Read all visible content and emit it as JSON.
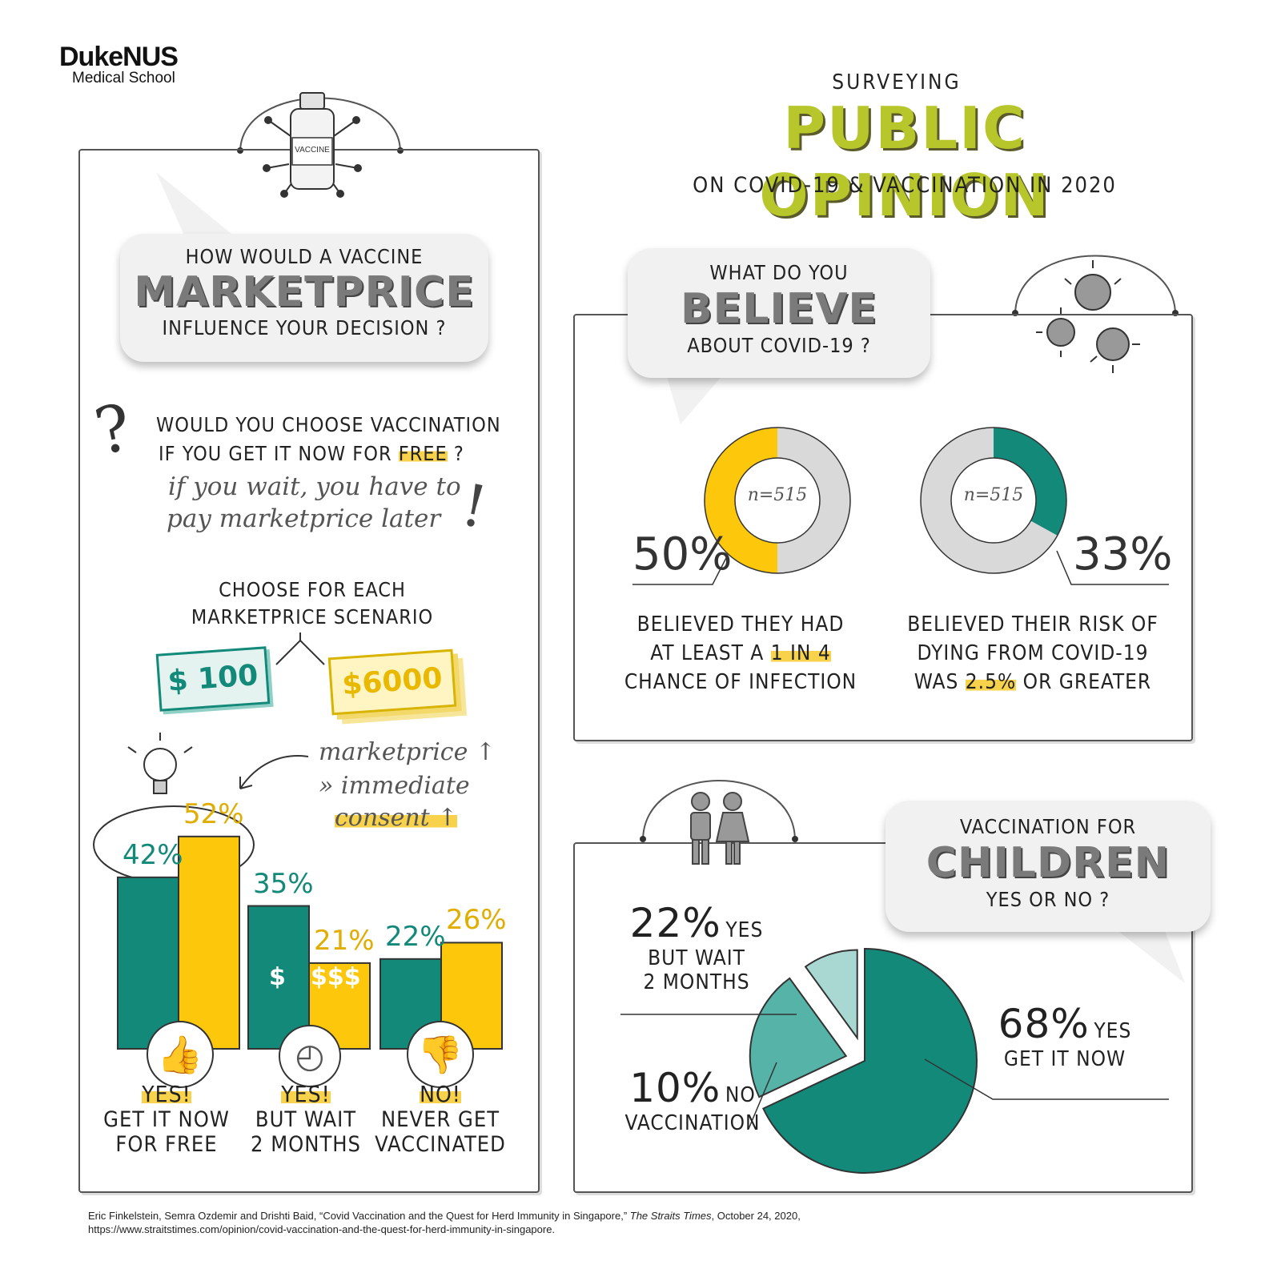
{
  "logo": {
    "name": "DukeNUS",
    "sub": "Medical School"
  },
  "header": {
    "top": "SURVEYING",
    "main": "PUBLIC OPINION",
    "sub": "ON COVID-19 & VACCINATION IN 2020"
  },
  "left": {
    "vaccine_label": "VACCINE",
    "bubble": {
      "line1": "HOW WOULD A VACCINE",
      "big": "MARKETPRICE",
      "line2": "INFLUENCE YOUR DECISION ?"
    },
    "question": {
      "line1": "WOULD YOU CHOOSE VACCINATION",
      "line2_a": "IF YOU GET IT NOW FOR",
      "line2_b": "FREE",
      "line2_c": "?"
    },
    "wait_note": {
      "line1": "if you wait, you have to",
      "line2": "pay marketprice later"
    },
    "choose": {
      "line1": "CHOOSE FOR EACH",
      "line2": "MARKETPRICE SCENARIO"
    },
    "price_low": "$ 100",
    "price_high": "$6000",
    "note": {
      "line1": "marketprice ↑",
      "line2": "» immediate",
      "line3": "consent ↑"
    },
    "dollar_low": "$",
    "dollar_high": "$$$"
  },
  "chart_data": [
    {
      "type": "bar",
      "categories": [
        "YES! GET IT NOW FOR FREE",
        "YES! BUT WAIT 2 MONTHS",
        "NO! NEVER GET VACCINATED"
      ],
      "series": [
        {
          "name": "$ 100",
          "values": [
            42,
            35,
            22
          ],
          "labels": [
            "42%",
            "35%",
            "22%"
          ]
        },
        {
          "name": "$6000",
          "values": [
            52,
            21,
            26
          ],
          "labels": [
            "52%",
            "21%",
            "26%"
          ]
        }
      ],
      "category_labels": [
        {
          "head": "YES!",
          "line1": "GET IT NOW",
          "line2": "FOR FREE"
        },
        {
          "head": "YES!",
          "line1": "BUT WAIT",
          "line2": "2 MONTHS"
        },
        {
          "head": "NO!",
          "line1": "NEVER GET",
          "line2": "VACCINATED"
        }
      ],
      "ylim": [
        0,
        60
      ],
      "colors": [
        "#13897a",
        "#fdc80b"
      ]
    },
    {
      "type": "pie",
      "title": "WHAT DO YOU BELIEVE ABOUT COVID-19 ?",
      "charts": [
        {
          "value": 50,
          "label": "50%",
          "n": "n=515",
          "color": "#fdc80b",
          "text": {
            "line1": "BELIEVED THEY HAD",
            "line2_a": "AT LEAST A",
            "line2_b": "1 IN 4",
            "line3": "CHANCE OF INFECTION"
          }
        },
        {
          "value": 33,
          "label": "33%",
          "n": "n=515",
          "color": "#13897a",
          "text": {
            "line1": "BELIEVED THEIR RISK OF",
            "line2": "DYING FROM COVID-19",
            "line3_a": "WAS",
            "line3_b": "2.5%",
            "line3_c": "OR GREATER"
          }
        }
      ]
    },
    {
      "type": "pie",
      "title": "VACCINATION FOR CHILDREN YES OR NO ?",
      "slices": [
        {
          "name": "YES GET IT NOW",
          "value": 68,
          "label": "68%",
          "color": "#13897a"
        },
        {
          "name": "YES BUT WAIT 2 MONTHS",
          "value": 22,
          "label": "22%",
          "color": "#56b3a8"
        },
        {
          "name": "NO VACCINATION",
          "value": 10,
          "label": "10%",
          "color": "#a9d8d2"
        }
      ]
    }
  ],
  "believe": {
    "line1": "WHAT DO YOU",
    "big": "BELIEVE",
    "line2": "ABOUT COVID-19 ?"
  },
  "children": {
    "line1": "VACCINATION FOR",
    "big": "CHILDREN",
    "line2": "YES OR NO ?",
    "yes_wait": {
      "pct": "22%",
      "l1": "YES",
      "l2": "BUT WAIT",
      "l3": "2 MONTHS"
    },
    "no": {
      "pct": "10%",
      "l1": "NO",
      "l2": "VACCINATION"
    },
    "yes_now": {
      "pct": "68%",
      "l1": "YES",
      "l2": "GET IT NOW"
    }
  },
  "citation": {
    "line1_a": "Eric Finkelstein, Semra Ozdemir and Drishti Baid, “Covid Vaccination and the Quest for Herd Immunity in Singapore,” ",
    "line1_b": "The Straits Times",
    "line1_c": ", October 24, 2020,",
    "line2": "https://www.straitstimes.com/opinion/covid-vaccination-and-the-quest-for-herd-immunity-in-singapore."
  }
}
